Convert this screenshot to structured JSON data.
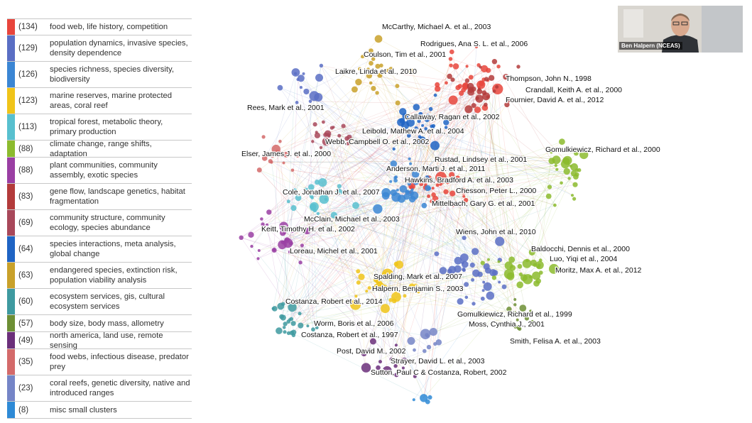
{
  "legend": {
    "items": [
      {
        "count": "(134)",
        "label": "food web, life history, competition",
        "color": "#e8453c"
      },
      {
        "count": "(129)",
        "label": "population dynamics, invasive species, density dependence",
        "color": "#5a6ec4"
      },
      {
        "count": "(126)",
        "label": "species richness, species diversity, biodiversity",
        "color": "#3b86d4"
      },
      {
        "count": "(123)",
        "label": "marine reserves, marine protected areas, coral reef",
        "color": "#f0c419"
      },
      {
        "count": "(113)",
        "label": "tropical forest, metabolic theory, primary production",
        "color": "#58c0cf"
      },
      {
        "count": "(88)",
        "label": "climate change, range shifts, adaptation",
        "color": "#8cbb2e"
      },
      {
        "count": "(88)",
        "label": "plant communities, community assembly, exotic species",
        "color": "#9a3fa3"
      },
      {
        "count": "(83)",
        "label": "gene flow, landscape genetics, habitat fragmentation",
        "color": "#b33b3b"
      },
      {
        "count": "(69)",
        "label": "community structure, community ecology, species abundance",
        "color": "#a8485a"
      },
      {
        "count": "(64)",
        "label": "species interactions, meta analysis, global change",
        "color": "#1f64c4"
      },
      {
        "count": "(63)",
        "label": "endangered species, extinction risk, population viability analysis",
        "color": "#c9a12a"
      },
      {
        "count": "(60)",
        "label": "ecosystem services, gis, cultural ecosystem services",
        "color": "#3e9aa0"
      },
      {
        "count": "(57)",
        "label": "body size, body mass, allometry",
        "color": "#6d8f35"
      },
      {
        "count": "(49)",
        "label": "north america, land use, remote sensing",
        "color": "#6b2f7a"
      },
      {
        "count": "(35)",
        "label": "food webs, infectious disease, predator prey",
        "color": "#d46a6a"
      },
      {
        "count": "(23)",
        "label": "coral reefs, genetic diversity, native and introduced ranges",
        "color": "#7585c7"
      },
      {
        "count": "(8)",
        "label": "misc small clusters",
        "color": "#2e8ad6"
      }
    ]
  },
  "network": {
    "labels": [
      "McCarthy, Michael A. et al., 2003",
      "Rodrigues, Ana S. L. et al., 2006",
      "Coulson, Tim et al., 2001",
      "Laikre, Linda et al., 2010",
      "Thompson, John N., 1998",
      "Crandall, Keith A. et al., 2000",
      "Fournier, David A. et al., 2012",
      "Rees, Mark et al., 2001",
      "Callaway, Ragan et al., 2002",
      "Leibold, Mathew A. et al., 2004",
      "Webb, Campbell O. et al., 2002",
      "Gomulkiewicz, Richard et al., 2000",
      "Elser, James J. et al., 2000",
      "Rustad, Lindsey et al., 2001",
      "Anderson, Marti J. et al., 2011",
      "Hawkins, Bradford A. et al., 2003",
      "Chesson, Peter L., 2000",
      "Cole, Jonathan J. et al., 2007",
      "Mittelbach, Gary G. et al., 2001",
      "McClain, Michael et al., 2003",
      "Keitt, Timothy H. et al., 2002",
      "Wiens, John et al., 2010",
      "Loreau, Michel et al., 2001",
      "Baldocchi, Dennis et al., 2000",
      "Luo, Yiqi et al., 2004",
      "Moritz, Max A. et al., 2012",
      "Spalding, Mark et al., 2007",
      "Halpern, Benjamin S., 2003",
      "Costanza, Robert et al., 2014",
      "Gomulkiewicz, Richard et al., 1999",
      "Worm, Boris et al., 2006",
      "Moss, Cynthia J., 2001",
      "Costanza, Robert et al., 1997",
      "Smith, Felisa A. et al., 2003",
      "Post, David M., 2002",
      "Strayer, David L. et al., 2003",
      "Sutton, Paul C & Costanza, Robert, 2002"
    ]
  },
  "webcam": {
    "name": "Ben Halpern (NCEAS)"
  }
}
